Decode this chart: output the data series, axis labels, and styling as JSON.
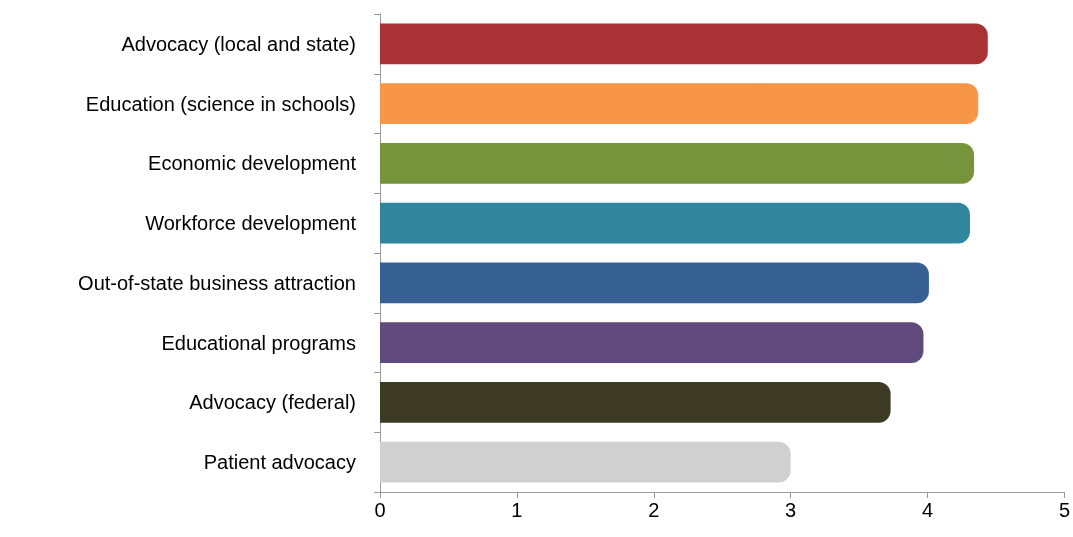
{
  "chart_data": {
    "type": "bar",
    "orientation": "horizontal",
    "categories": [
      "Advocacy (local and state)",
      "Education (science in schools)",
      "Economic development",
      "Workforce development",
      "Out-of-state business attraction",
      "Educational programs",
      "Advocacy (federal)",
      "Patient advocacy"
    ],
    "values": [
      4.44,
      4.37,
      4.34,
      4.31,
      4.01,
      3.97,
      3.73,
      3.0
    ],
    "colors": [
      "#a83236",
      "#f79646",
      "#77933c",
      "#31859c",
      "#376092",
      "#604a7b",
      "#3c3a23",
      "#d0d0d0"
    ],
    "xlim": [
      0,
      5
    ],
    "xticks": [
      0,
      1,
      2,
      3,
      4,
      5
    ],
    "grid": false
  }
}
